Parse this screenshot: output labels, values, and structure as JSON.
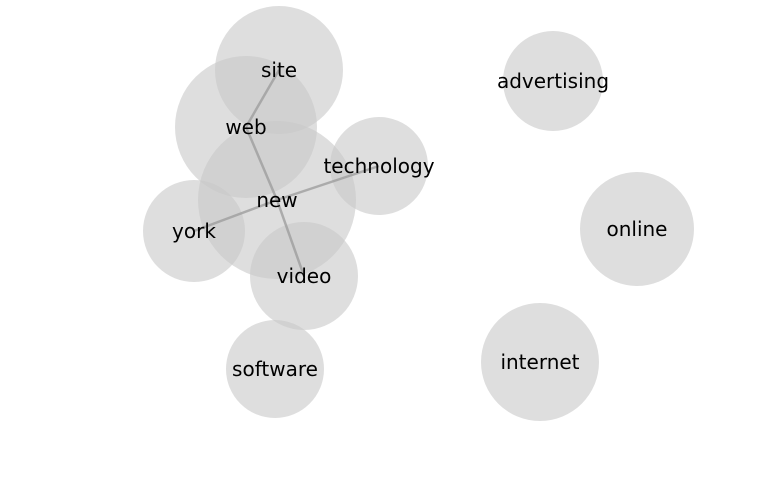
{
  "diagram": {
    "type": "word-association-network",
    "colors": {
      "node_fill": "#c8c8c8",
      "edge": "#9e9e9e",
      "label": "#000000",
      "background": "#ffffff"
    },
    "nodes": [
      {
        "id": "site",
        "label": "site"
      },
      {
        "id": "web",
        "label": "web"
      },
      {
        "id": "new",
        "label": "new"
      },
      {
        "id": "technology",
        "label": "technology"
      },
      {
        "id": "york",
        "label": "york"
      },
      {
        "id": "video",
        "label": "video"
      },
      {
        "id": "software",
        "label": "software"
      },
      {
        "id": "advertising",
        "label": "advertising"
      },
      {
        "id": "online",
        "label": "online"
      },
      {
        "id": "internet",
        "label": "internet"
      }
    ],
    "edges": [
      {
        "from": "site",
        "to": "web"
      },
      {
        "from": "web",
        "to": "new"
      },
      {
        "from": "new",
        "to": "technology"
      },
      {
        "from": "new",
        "to": "york"
      },
      {
        "from": "new",
        "to": "video"
      }
    ]
  }
}
